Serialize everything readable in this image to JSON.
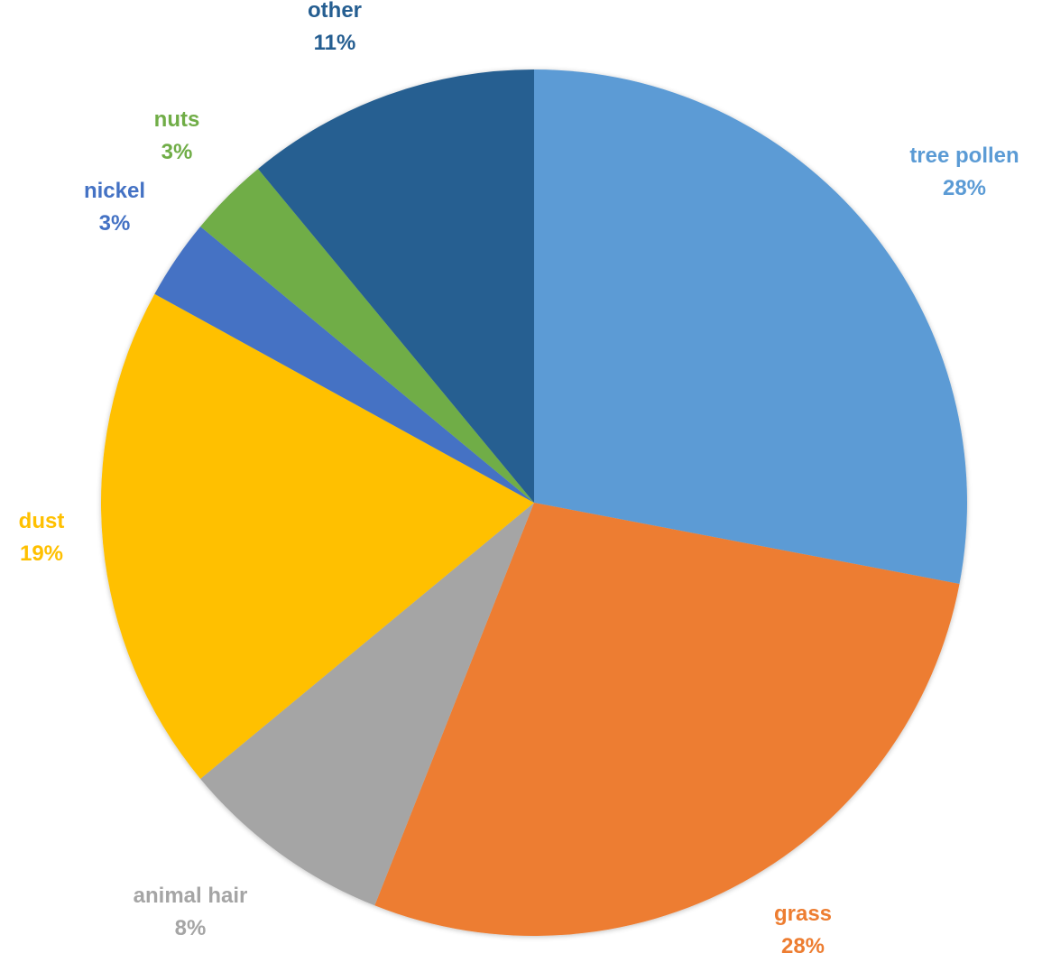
{
  "chart_data": {
    "type": "pie",
    "title": "",
    "start_angle_deg": 0,
    "direction": "clockwise",
    "slices": [
      {
        "name": "tree pollen",
        "value": 28,
        "label": "28%",
        "color": "#5B9BD5"
      },
      {
        "name": "grass",
        "value": 28,
        "label": "28%",
        "color": "#ED7D31"
      },
      {
        "name": "animal hair",
        "value": 8,
        "label": "8%",
        "color": "#A5A5A5"
      },
      {
        "name": "dust",
        "value": 19,
        "label": "19%",
        "color": "#FFC000"
      },
      {
        "name": "nickel",
        "value": 3,
        "label": "3%",
        "color": "#4472C4"
      },
      {
        "name": "nuts",
        "value": 3,
        "label": "3%",
        "color": "#70AD47"
      },
      {
        "name": "other",
        "value": 11,
        "label": "11%",
        "color": "#255E91"
      }
    ],
    "legend": "none",
    "data_labels": "outside"
  }
}
